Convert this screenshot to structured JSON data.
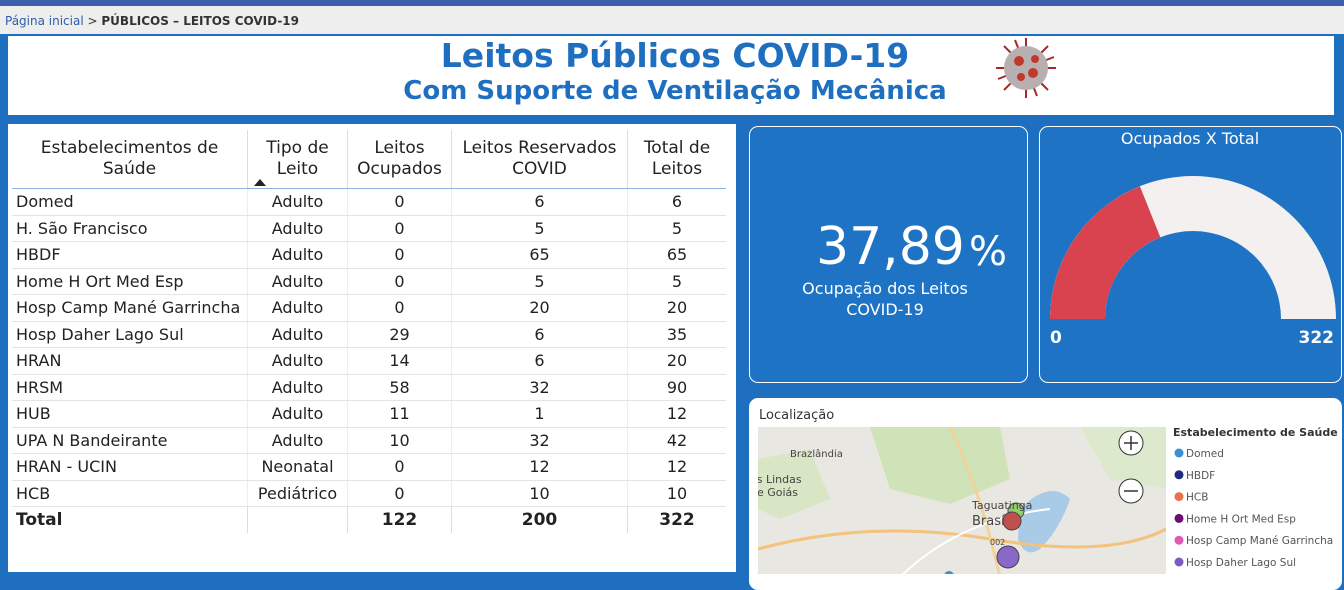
{
  "breadcrumb": {
    "home": "Página inicial",
    "separator": ">",
    "current": "PÚBLICOS – LEITOS COVID-19"
  },
  "header": {
    "title": "Leitos Públicos COVID-19",
    "subtitle": "Com Suporte de Ventilação Mecânica"
  },
  "table": {
    "columns": [
      "Estabelecimentos de Saúde",
      "Tipo de Leito",
      "Leitos Ocupados",
      "Leitos Reservados COVID",
      "Total de Leitos"
    ],
    "rows": [
      [
        "Domed",
        "Adulto",
        0,
        6,
        6
      ],
      [
        "H. São Francisco",
        "Adulto",
        0,
        5,
        5
      ],
      [
        "HBDF",
        "Adulto",
        0,
        65,
        65
      ],
      [
        "Home H Ort Med Esp",
        "Adulto",
        0,
        5,
        5
      ],
      [
        "Hosp Camp Mané Garrincha",
        "Adulto",
        0,
        20,
        20
      ],
      [
        "Hosp Daher Lago Sul",
        "Adulto",
        29,
        6,
        35
      ],
      [
        "HRAN",
        "Adulto",
        14,
        6,
        20
      ],
      [
        "HRSM",
        "Adulto",
        58,
        32,
        90
      ],
      [
        "HUB",
        "Adulto",
        11,
        1,
        12
      ],
      [
        "UPA N Bandeirante",
        "Adulto",
        10,
        32,
        42
      ],
      [
        "HRAN - UCIN",
        "Neonatal",
        0,
        12,
        12
      ],
      [
        "HCB",
        "Pediátrico",
        0,
        10,
        10
      ]
    ],
    "total": {
      "label": "Total",
      "values": [
        122,
        200,
        322
      ]
    }
  },
  "kpi": {
    "value": "37,89",
    "unit": "%",
    "label": "Ocupação dos Leitos COVID-19"
  },
  "gauge": {
    "title": "Ocupados X Total",
    "value": 122,
    "min": 0,
    "max": 322,
    "fill_color": "#d8434f",
    "track_color": "#f3f0ef"
  },
  "map": {
    "title": "Localização",
    "places": [
      "Brazlândia",
      "as Lindas de Goiás",
      "Taguatinga",
      "Brasí",
      "002"
    ],
    "legend": {
      "title": "Estabelecimento de Saúde",
      "items": [
        {
          "name": "Domed",
          "color": "#3a8fd8"
        },
        {
          "name": "HBDF",
          "color": "#1c2a80"
        },
        {
          "name": "HCB",
          "color": "#e8734a"
        },
        {
          "name": "Home H Ort Med Esp",
          "color": "#6b0f72"
        },
        {
          "name": "Hosp Camp Mané Garrincha",
          "color": "#e058b4"
        },
        {
          "name": "Hosp Daher Lago Sul",
          "color": "#7a5cc6"
        }
      ]
    }
  }
}
